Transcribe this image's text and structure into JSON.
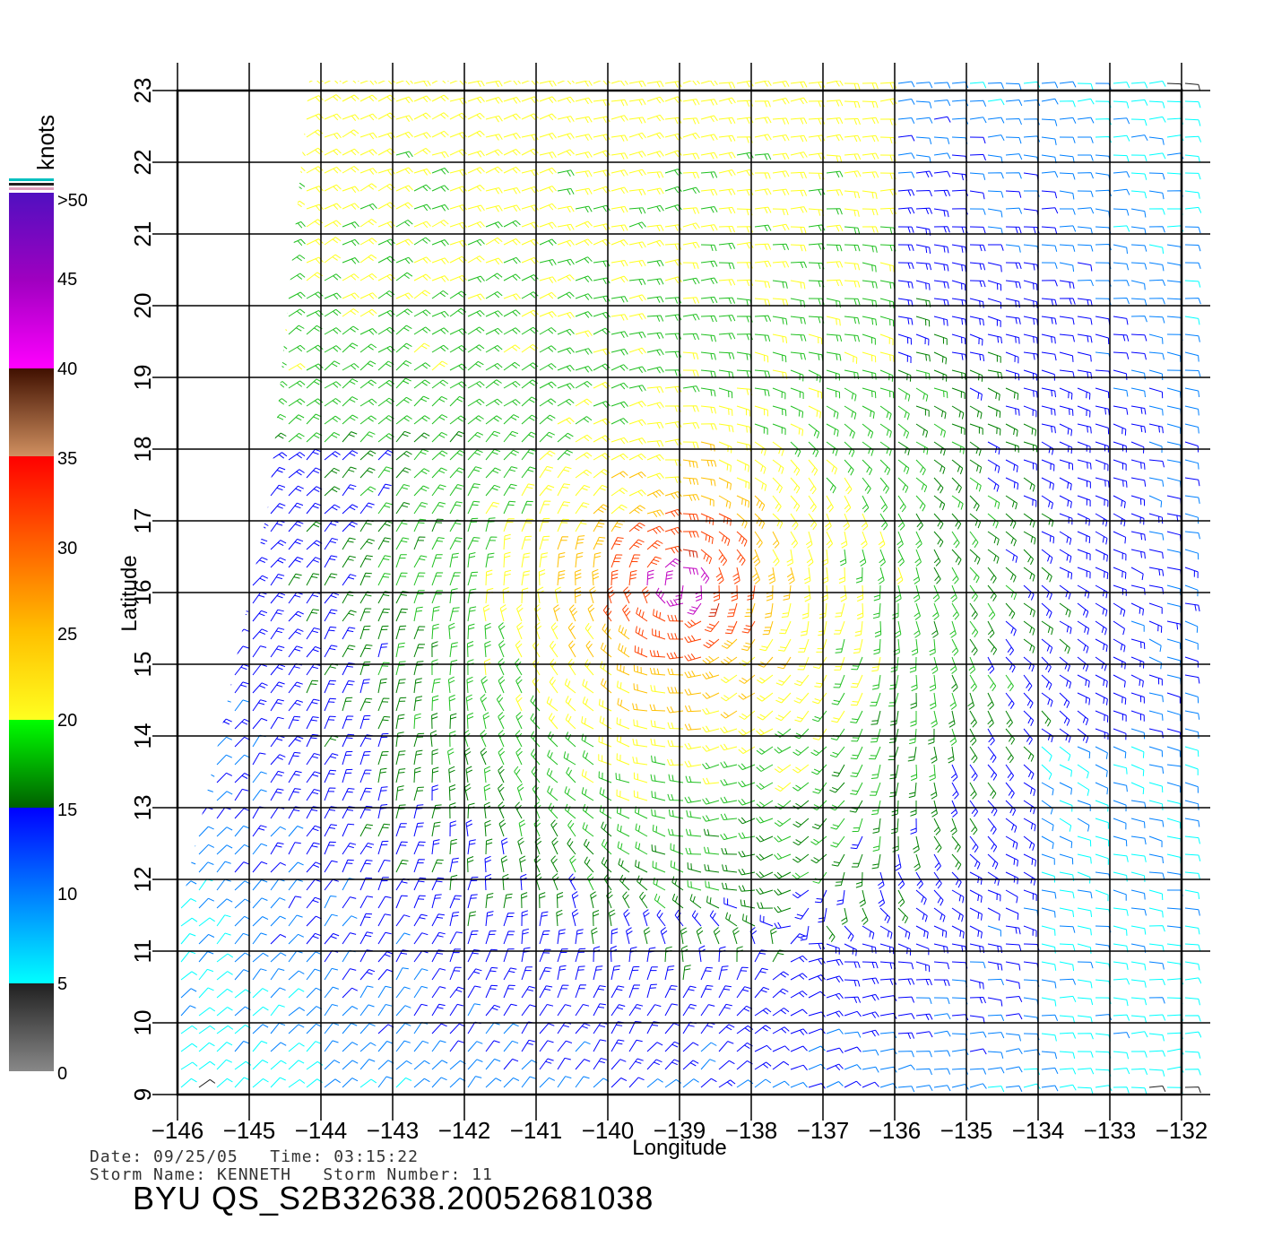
{
  "plot": {
    "x_axis_label": "Longitude",
    "y_axis_label": "Latitude",
    "lon_ticks": [
      "−146",
      "−145",
      "−144",
      "−143",
      "−142",
      "−141",
      "−140",
      "−139",
      "−138",
      "−137",
      "−136",
      "−135",
      "−134",
      "−133",
      "−132"
    ],
    "lat_ticks": [
      "9",
      "10",
      "11",
      "12",
      "13",
      "14",
      "15",
      "16",
      "17",
      "18",
      "19",
      "20",
      "21",
      "22",
      "23"
    ],
    "lon_range": [
      -146,
      -132
    ],
    "lat_range": [
      9,
      23
    ]
  },
  "legend": {
    "unit": "knots",
    "labels": [
      ">50",
      "45",
      "40",
      "35",
      "30",
      "25",
      "20",
      "15",
      "10",
      "5",
      "0"
    ],
    "colors": {
      "c0": "#808080",
      "c5": "#202020",
      "c5b": "#00ffff",
      "c10": "#0080ff",
      "c15": "#0000ff",
      "c15b": "#008000",
      "c20": "#00ff00",
      "c20b": "#ffff20",
      "c25": "#ffc000",
      "c30": "#ff4000",
      "c35": "#ff0000",
      "c35b": "#c08060",
      "c40": "#401000",
      "c40b": "#ff00ff",
      "c50": "#6010c0"
    }
  },
  "storm": {
    "center_lon": -139.0,
    "center_lat": 16.1
  },
  "info": {
    "date_line": "Date: 09/25/05   Time: 03:15:22",
    "storm_line": "Storm Name: KENNETH   Storm Number: 11",
    "product": "BYU QS_S2B32638.20052681038"
  }
}
